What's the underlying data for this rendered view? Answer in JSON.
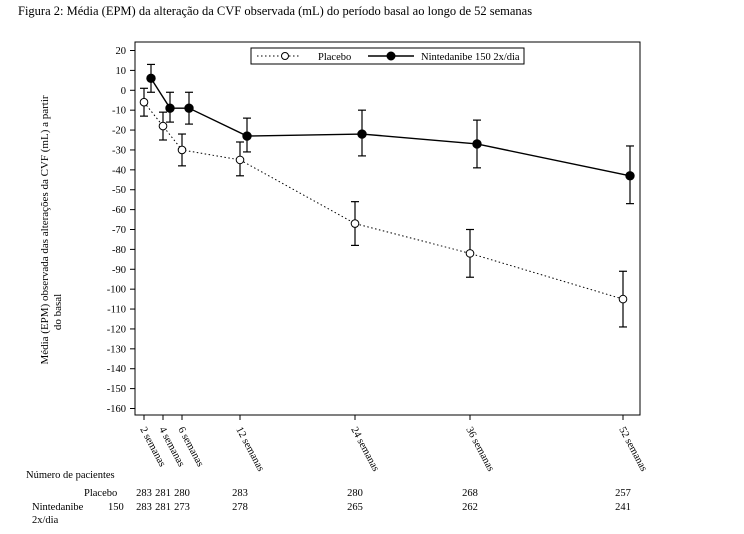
{
  "figure_title": "Figura 2: Média (EPM) da alteração da CVF observada (mL) do período basal ao longo de 52 semanas",
  "chart_data": {
    "type": "line",
    "ylabel": "Média (EPM) observada das alterações da CVF (mL) a partir do basal",
    "xlabel": "",
    "ylim": [
      -160,
      20
    ],
    "yticks": [
      20,
      10,
      0,
      -10,
      -20,
      -30,
      -40,
      -50,
      -60,
      -70,
      -80,
      -90,
      -100,
      -110,
      -120,
      -130,
      -140,
      -150,
      -160
    ],
    "x": [
      2,
      4,
      6,
      12,
      24,
      36,
      52
    ],
    "xtick_labels": [
      "2 semanas",
      "4 semanas",
      "6 semanas",
      "12 semanas",
      "24 semanas",
      "36 semanas",
      "52 semanas"
    ],
    "legend_position": "top-right",
    "grid": false,
    "series": [
      {
        "name": "Placebo",
        "style": "dotted",
        "marker": "open-circle",
        "color": "#000000",
        "values": [
          -6,
          -18,
          -30,
          -35,
          -67,
          -82,
          -105
        ],
        "err_low": [
          -13,
          -25,
          -38,
          -43,
          -78,
          -94,
          -119
        ],
        "err_high": [
          1,
          -11,
          -22,
          -26,
          -56,
          -70,
          -91
        ]
      },
      {
        "name": "Nintedanibe 150 2x/dia",
        "style": "solid",
        "marker": "filled-circle",
        "color": "#000000",
        "values": [
          6,
          -9,
          -9,
          -23,
          -22,
          -27,
          -43
        ],
        "err_low": [
          -1,
          -16,
          -17,
          -31,
          -33,
          -39,
          -57
        ],
        "err_high": [
          13,
          -1,
          -1,
          -14,
          -10,
          -15,
          -28
        ]
      }
    ]
  },
  "patients_table": {
    "title": "Número de pacientes",
    "rows": [
      {
        "label": "Placebo",
        "counts": [
          "283",
          "281",
          "280",
          "283",
          "280",
          "268",
          "257"
        ]
      },
      {
        "label_line1": "Nintedanibe",
        "label_dose": "150",
        "label_line2": "2x/dia",
        "counts": [
          "283",
          "281",
          "273",
          "278",
          "265",
          "262",
          "241"
        ]
      }
    ]
  }
}
